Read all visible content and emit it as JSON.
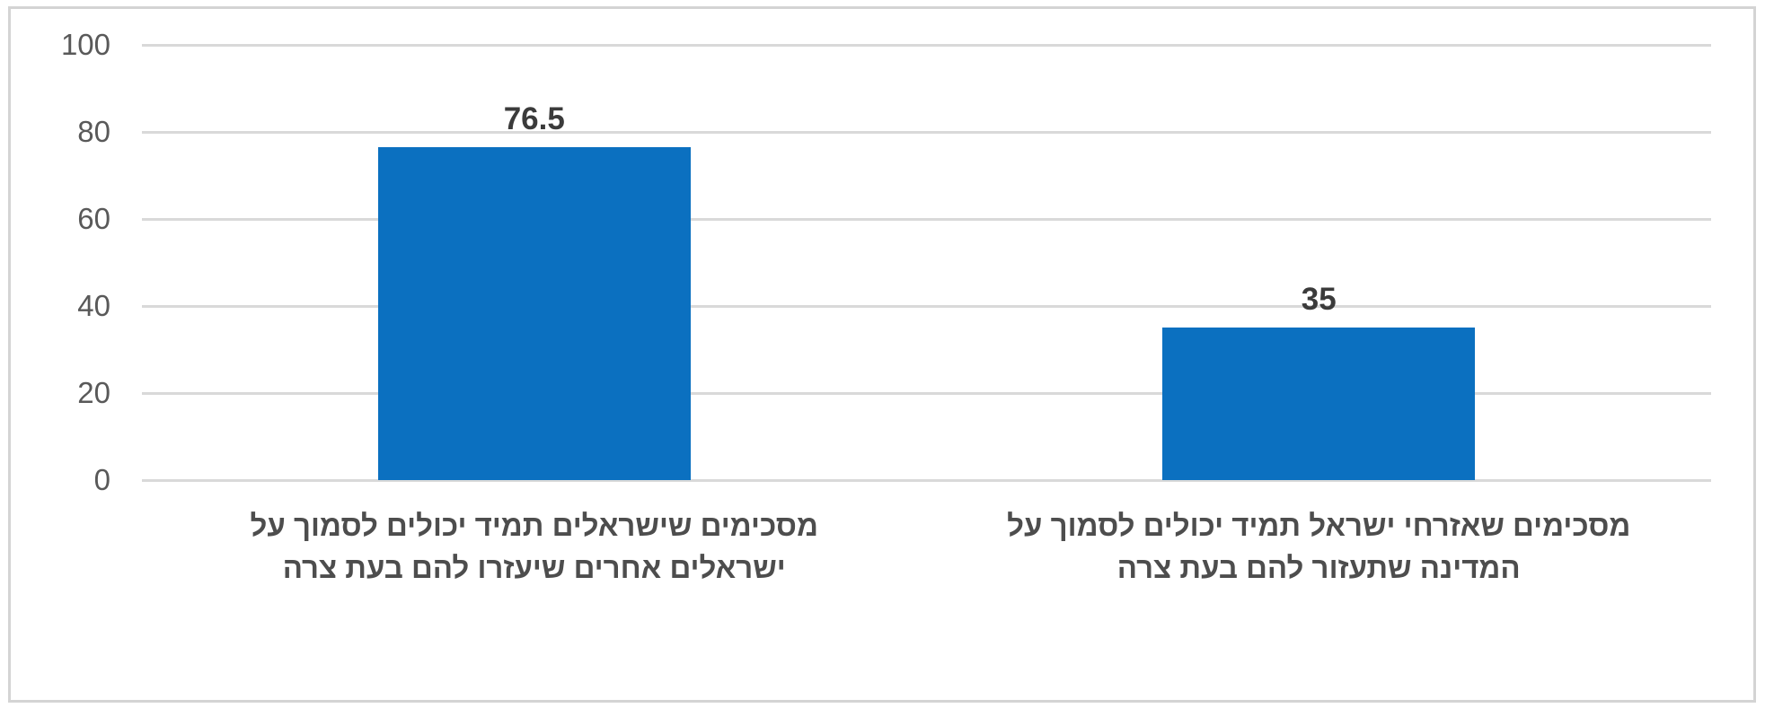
{
  "chart_data": {
    "type": "bar",
    "categories": [
      "מסכימים שישראלים תמיד יכולים לסמוך על ישראלים אחרים שיעזרו להם בעת צרה",
      "מסכימים שאזרחי ישראל תמיד יכולים לסמוך על המדינה שתעזור להם בעת צרה"
    ],
    "category_lines": [
      [
        "מסכימים שישראלים תמיד יכולים לסמוך על",
        "ישראלים אחרים שיעזרו להם בעת צרה"
      ],
      [
        "מסכימים שאזרחי ישראל תמיד יכולים לסמוך על",
        "המדינה שתעזור להם בעת צרה"
      ]
    ],
    "values": [
      76.5,
      35
    ],
    "value_labels": [
      "76.5",
      "35"
    ],
    "yticks": [
      0,
      20,
      40,
      60,
      80,
      100
    ],
    "ylim": [
      0,
      100
    ],
    "title": "",
    "xlabel": "",
    "ylabel": "",
    "legend": null,
    "grid": true,
    "rtl": true
  },
  "colors": {
    "bar": "#0b70c0",
    "gridline": "#d9d9d9",
    "frame_border": "#d4d4d4",
    "tick_text": "#595959",
    "value_text": "#3b3b3b",
    "category_text": "#4d4d4d",
    "background": "#ffffff"
  }
}
